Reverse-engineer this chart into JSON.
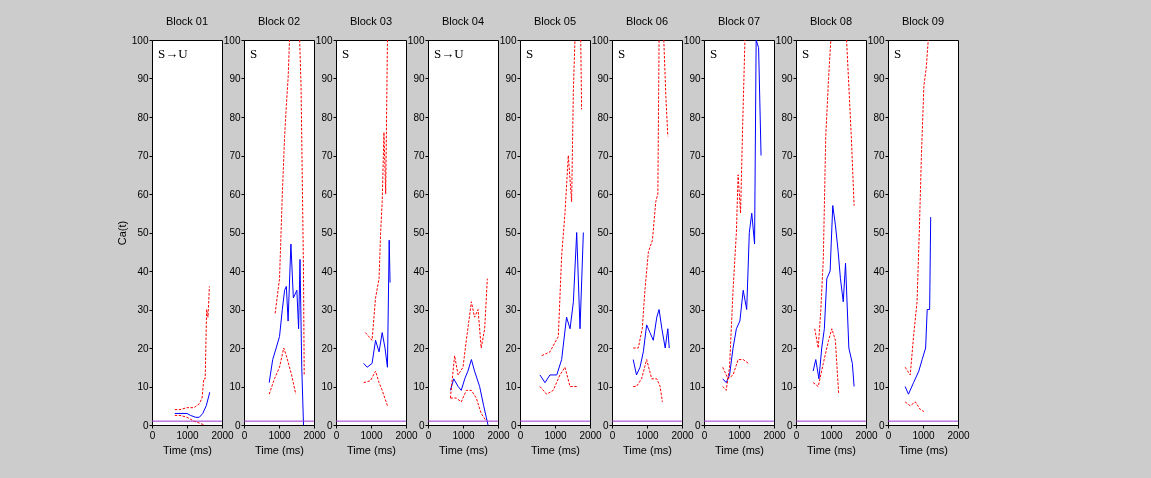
{
  "chart_data": [
    {
      "type": "line",
      "title": "Block 01",
      "xlabel": "Time (ms)",
      "ylabel": "Ca(t)",
      "annotations": [
        "S→U"
      ],
      "xlim": [
        0,
        2000
      ],
      "xticks": [
        0,
        1000,
        2000
      ],
      "ylim": [
        0,
        100
      ],
      "yticks": [
        0,
        10,
        20,
        30,
        40,
        50,
        60,
        70,
        80,
        90,
        100
      ],
      "grid": false,
      "ref_lines": [
        {
          "axis": "y",
          "value": 1
        }
      ],
      "series": [
        {
          "color": "#0000ff",
          "line_style": "solid",
          "x": [
            650,
            800,
            1000,
            1100,
            1250,
            1350,
            1450,
            1550,
            1650
          ],
          "values": [
            3,
            3,
            3,
            2.5,
            2,
            2,
            3,
            5,
            8.5
          ]
        },
        {
          "color": "#ff0000",
          "line_style": "dashed",
          "x": [
            650,
            800,
            1000,
            1200,
            1350,
            1430,
            1480,
            1520,
            1560,
            1600,
            1640
          ],
          "values": [
            4,
            4,
            4.5,
            4.5,
            5.5,
            7,
            12,
            12,
            30,
            28,
            36
          ]
        },
        {
          "color": "#ff0000",
          "line_style": "dashed",
          "x": [
            650,
            800,
            1000,
            1100,
            1200,
            1350,
            1500
          ],
          "values": [
            2.5,
            2.5,
            2,
            1.5,
            1,
            0.5,
            0
          ]
        }
      ]
    },
    {
      "type": "line",
      "title": "Block 02",
      "xlabel": "Time (ms)",
      "annotations": [
        "S"
      ],
      "xlim": [
        0,
        2000
      ],
      "xticks": [
        0,
        1000,
        2000
      ],
      "ylim": [
        0,
        100
      ],
      "yticks": [
        0,
        10,
        20,
        30,
        40,
        50,
        60,
        70,
        80,
        90,
        100
      ],
      "grid": false,
      "ref_lines": [
        {
          "axis": "y",
          "value": 1
        }
      ],
      "series": [
        {
          "color": "#0000ff",
          "line_style": "solid",
          "x": [
            720,
            820,
            920,
            1015,
            1095,
            1160,
            1210,
            1260,
            1340,
            1410,
            1510,
            1560,
            1600,
            1650,
            1700
          ],
          "values": [
            11,
            17,
            20,
            23,
            30,
            35,
            36,
            27,
            47,
            33,
            35,
            25,
            43,
            15,
            0
          ]
        },
        {
          "color": "#ff0000",
          "line_style": "dashed",
          "x": [
            890,
            1015,
            1095,
            1160,
            1210,
            1260,
            1300,
            1450,
            1590,
            1630,
            1700,
            1720
          ],
          "values": [
            29,
            38,
            60,
            75,
            83,
            90,
            100,
            null,
            100,
            88,
            40,
            13
          ]
        },
        {
          "color": "#ff0000",
          "line_style": "dashed",
          "x": [
            720,
            870,
            1015,
            1135,
            1210,
            1360,
            1480
          ],
          "values": [
            8,
            12,
            15,
            20,
            18,
            13,
            8
          ]
        }
      ]
    },
    {
      "type": "line",
      "title": "Block 03",
      "xlabel": "Time (ms)",
      "annotations": [
        "S"
      ],
      "xlim": [
        0,
        2000
      ],
      "xticks": [
        0,
        1000,
        2000
      ],
      "ylim": [
        0,
        100
      ],
      "yticks": [
        0,
        10,
        20,
        30,
        40,
        50,
        60,
        70,
        80,
        90,
        100
      ],
      "grid": false,
      "ref_lines": [
        {
          "axis": "y",
          "value": 1
        }
      ],
      "series": [
        {
          "color": "#0000ff",
          "line_style": "solid",
          "x": [
            790,
            890,
            1030,
            1130,
            1230,
            1320,
            1400,
            1470,
            1520,
            1545
          ],
          "values": [
            16,
            15,
            16,
            22,
            19,
            24,
            20,
            15,
            48,
            37
          ]
        },
        {
          "color": "#ff0000",
          "line_style": "dashed",
          "x": [
            840,
            1030,
            1130,
            1230,
            1275,
            1320,
            1370,
            1420,
            1470
          ],
          "values": [
            24,
            22,
            33,
            38,
            50,
            58,
            76,
            60,
            100
          ]
        },
        {
          "color": "#ff0000",
          "line_style": "dashed",
          "x": [
            790,
            985,
            1130,
            1230,
            1320,
            1470
          ],
          "values": [
            11,
            11.5,
            14,
            11,
            9,
            5
          ]
        }
      ]
    },
    {
      "type": "line",
      "title": "Block 04",
      "xlabel": "Time (ms)",
      "annotations": [
        "S→U"
      ],
      "xlim": [
        0,
        2000
      ],
      "xticks": [
        0,
        1000,
        2000
      ],
      "ylim": [
        0,
        100
      ],
      "yticks": [
        0,
        10,
        20,
        30,
        40,
        50,
        60,
        70,
        80,
        90,
        100
      ],
      "grid": false,
      "ref_lines": [
        {
          "axis": "y",
          "value": 1
        }
      ],
      "series": [
        {
          "color": "#0000ff",
          "line_style": "solid",
          "x": [
            640,
            735,
            860,
            950,
            1050,
            1140,
            1240,
            1330,
            1475,
            1590,
            1665,
            1715
          ],
          "values": [
            9,
            12,
            10,
            9,
            12,
            14,
            17,
            14,
            10,
            5,
            2,
            0
          ]
        },
        {
          "color": "#ff0000",
          "line_style": "dashed",
          "x": [
            640,
            760,
            860,
            1000,
            1095,
            1240,
            1330,
            1430,
            1520,
            1620,
            1695
          ],
          "values": [
            7,
            18,
            13,
            15,
            22,
            32,
            28,
            30,
            20,
            25,
            38
          ]
        },
        {
          "color": "#ff0000",
          "line_style": "dashed",
          "x": [
            640,
            810,
            950,
            1095,
            1240,
            1380,
            1520,
            1665
          ],
          "values": [
            7,
            7,
            6,
            9,
            9,
            7,
            3,
            1
          ]
        }
      ]
    },
    {
      "type": "line",
      "title": "Block 05",
      "xlabel": "Time (ms)",
      "annotations": [
        "S"
      ],
      "xlim": [
        0,
        2000
      ],
      "xticks": [
        0,
        1000,
        2000
      ],
      "ylim": [
        0,
        100
      ],
      "yticks": [
        0,
        10,
        20,
        30,
        40,
        50,
        60,
        70,
        80,
        90,
        100
      ],
      "grid": false,
      "ref_lines": [
        {
          "axis": "y",
          "value": 1
        }
      ],
      "series": [
        {
          "color": "#0000ff",
          "line_style": "solid",
          "x": [
            570,
            715,
            855,
            1050,
            1190,
            1330,
            1430,
            1525,
            1620,
            1715,
            1810
          ],
          "values": [
            13,
            11,
            13,
            13,
            17,
            28,
            25,
            32,
            50,
            25,
            50
          ]
        },
        {
          "color": "#ff0000",
          "line_style": "dashed",
          "x": [
            620,
            855,
            1095,
            1190,
            1285,
            1380,
            1475,
            1525,
            1570,
            1650,
            1735,
            1760
          ],
          "values": [
            18,
            19,
            23,
            44,
            55,
            70,
            58,
            87,
            100,
            null,
            100,
            82
          ]
        },
        {
          "color": "#ff0000",
          "line_style": "dashed",
          "x": [
            570,
            760,
            950,
            1140,
            1285,
            1430,
            1620
          ],
          "values": [
            10,
            8,
            9,
            13,
            15,
            10,
            10
          ]
        }
      ]
    },
    {
      "type": "line",
      "title": "Block 06",
      "xlabel": "Time (ms)",
      "annotations": [
        "S"
      ],
      "xlim": [
        0,
        2000
      ],
      "xticks": [
        0,
        1000,
        2000
      ],
      "ylim": [
        0,
        100
      ],
      "yticks": [
        0,
        10,
        20,
        30,
        40,
        50,
        60,
        70,
        80,
        90,
        100
      ],
      "grid": false,
      "ref_lines": [
        {
          "axis": "y",
          "value": 1
        }
      ],
      "series": [
        {
          "color": "#0000ff",
          "line_style": "solid",
          "x": [
            605,
            700,
            800,
            895,
            990,
            1085,
            1180,
            1280,
            1345,
            1425,
            1520,
            1595,
            1635
          ],
          "values": [
            17,
            13,
            15,
            19,
            26,
            24,
            22,
            28,
            30,
            25,
            20,
            25,
            20
          ]
        },
        {
          "color": "#ff0000",
          "line_style": "dashed",
          "x": [
            605,
            750,
            865,
            940,
            1040,
            1155,
            1250,
            1310,
            1345,
            1410,
            1480,
            1540,
            1595
          ],
          "values": [
            20,
            20,
            25,
            35,
            45,
            48,
            58,
            60,
            100,
            null,
            100,
            85,
            75
          ]
        },
        {
          "color": "#ff0000",
          "line_style": "dashed",
          "x": [
            605,
            700,
            845,
            990,
            1135,
            1280,
            1375,
            1440
          ],
          "values": [
            10,
            10,
            12,
            17,
            12,
            12,
            10,
            6
          ]
        }
      ]
    },
    {
      "type": "line",
      "title": "Block 07",
      "xlabel": "Time (ms)",
      "annotations": [
        "S"
      ],
      "xlim": [
        0,
        2000
      ],
      "xticks": [
        0,
        1000,
        2000
      ],
      "ylim": [
        0,
        100
      ],
      "yticks": [
        0,
        10,
        20,
        30,
        40,
        50,
        60,
        70,
        80,
        90,
        100
      ],
      "grid": false,
      "ref_lines": [
        {
          "axis": "y",
          "value": 1
        }
      ],
      "series": [
        {
          "color": "#0000ff",
          "line_style": "solid",
          "x": [
            535,
            635,
            730,
            830,
            925,
            1025,
            1120,
            1220,
            1295,
            1365,
            1445,
            1490,
            1560,
            1630
          ],
          "values": [
            12,
            11,
            13,
            20,
            25,
            27,
            35,
            30,
            50,
            55,
            47,
            100,
            98,
            70
          ]
        },
        {
          "color": "#ff0000",
          "line_style": "dashed",
          "x": [
            535,
            635,
            730,
            830,
            925,
            975,
            1045,
            1105,
            1170
          ],
          "values": [
            10,
            9,
            15,
            35,
            50,
            65,
            55,
            78,
            100
          ]
        },
        {
          "color": "#ff0000",
          "line_style": "dashed",
          "x": [
            535,
            685,
            830,
            975,
            1120,
            1270
          ],
          "values": [
            15,
            12,
            13,
            17,
            17,
            16
          ]
        }
      ]
    },
    {
      "type": "line",
      "title": "Block 08",
      "xlabel": "Time (ms)",
      "annotations": [
        "S"
      ],
      "xlim": [
        0,
        2000
      ],
      "xticks": [
        0,
        1000,
        2000
      ],
      "ylim": [
        0,
        100
      ],
      "yticks": [
        0,
        10,
        20,
        30,
        40,
        50,
        60,
        70,
        80,
        90,
        100
      ],
      "grid": false,
      "ref_lines": [
        {
          "axis": "y",
          "value": 1
        }
      ],
      "series": [
        {
          "color": "#0000ff",
          "line_style": "solid",
          "x": [
            490,
            565,
            655,
            735,
            810,
            880,
            975,
            1050,
            1125,
            1205,
            1270,
            1350,
            1415,
            1510,
            1610,
            1660
          ],
          "values": [
            14,
            17,
            12,
            20,
            25,
            38,
            40,
            57,
            52,
            45,
            38,
            32,
            42,
            20,
            16,
            10
          ]
        },
        {
          "color": "#ff0000",
          "line_style": "dashed",
          "x": [
            535,
            635,
            710,
            780,
            850,
            930,
            995,
            1220,
            1445,
            1510,
            1580,
            1660
          ],
          "values": [
            25,
            20,
            30,
            43,
            75,
            90,
            100,
            null,
            100,
            88,
            75,
            57
          ]
        },
        {
          "color": "#ff0000",
          "line_style": "dashed",
          "x": [
            490,
            635,
            780,
            930,
            1025,
            1125,
            1220
          ],
          "values": [
            11,
            10,
            16,
            22,
            25,
            22,
            8
          ]
        }
      ]
    },
    {
      "type": "line",
      "title": "Block 09",
      "xlabel": "Time (ms)",
      "annotations": [
        "S"
      ],
      "xlim": [
        0,
        2000
      ],
      "xticks": [
        0,
        1000,
        2000
      ],
      "ylim": [
        0,
        100
      ],
      "yticks": [
        0,
        10,
        20,
        30,
        40,
        50,
        60,
        70,
        80,
        90,
        100
      ],
      "grid": false,
      "ref_lines": [
        {
          "axis": "y",
          "value": 1
        }
      ],
      "series": [
        {
          "color": "#0000ff",
          "line_style": "solid",
          "x": [
            490,
            585,
            730,
            880,
            975,
            1075,
            1120,
            1190,
            1220
          ],
          "values": [
            10,
            8,
            11,
            14,
            17,
            20,
            30,
            30,
            54
          ]
        },
        {
          "color": "#ff0000",
          "line_style": "dashed",
          "x": [
            490,
            635,
            730,
            830,
            900,
            955,
            1025,
            1095,
            1150
          ],
          "values": [
            15,
            13,
            23,
            32,
            52,
            70,
            88,
            93,
            100
          ]
        },
        {
          "color": "#ff0000",
          "line_style": "dashed",
          "x": [
            490,
            635,
            780,
            925,
            1025
          ],
          "values": [
            6,
            5,
            6,
            4,
            3.5
          ]
        }
      ]
    }
  ]
}
